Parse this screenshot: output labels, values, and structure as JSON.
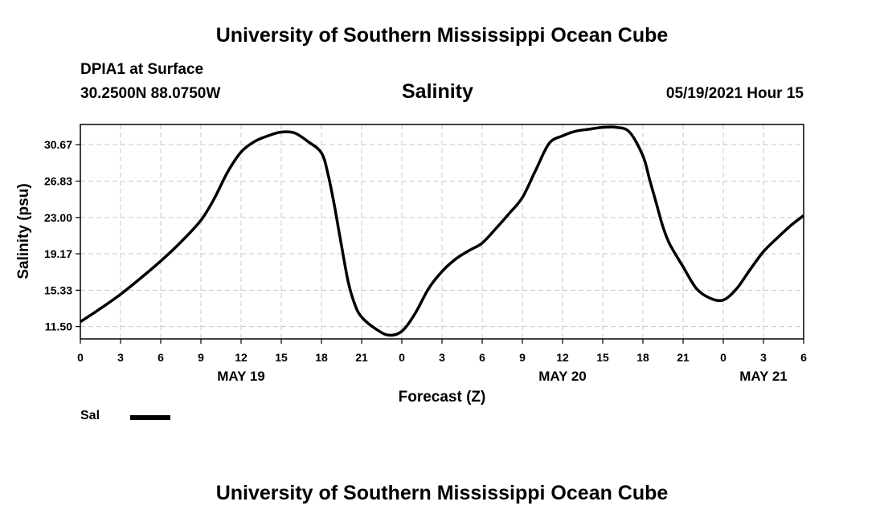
{
  "header": {
    "title": "University of Southern Mississippi Ocean Cube",
    "station": "DPIA1 at Surface",
    "coords": "30.2500N  88.0750W",
    "timestamp": "05/19/2021 Hour 15"
  },
  "footer": {
    "title": "University of Southern Mississippi Ocean Cube"
  },
  "chart_data": {
    "type": "line",
    "title": "Salinity",
    "xlabel": "Forecast (Z)",
    "ylabel": "Salinity (psu)",
    "xlim": [
      0,
      54
    ],
    "ylim": [
      10.2,
      32.8
    ],
    "grid": true,
    "x_ticks": [
      0,
      3,
      6,
      9,
      12,
      15,
      18,
      21,
      24,
      27,
      30,
      33,
      36,
      39,
      42,
      45,
      48,
      51,
      54
    ],
    "x_tick_labels": [
      "0",
      "3",
      "6",
      "9",
      "12",
      "15",
      "18",
      "21",
      "0",
      "3",
      "6",
      "9",
      "12",
      "15",
      "18",
      "21",
      "0",
      "3",
      "6"
    ],
    "y_ticks": [
      11.5,
      15.33,
      19.17,
      23.0,
      26.83,
      30.67
    ],
    "y_tick_labels": [
      "11.50",
      "15.33",
      "19.17",
      "23.00",
      "26.83",
      "30.67"
    ],
    "date_labels": [
      {
        "x": 12,
        "label": "MAY 19"
      },
      {
        "x": 36,
        "label": "MAY 20"
      },
      {
        "x": 51,
        "label": "MAY 21"
      }
    ],
    "series": [
      {
        "name": "Sal",
        "color": "#000000",
        "x": [
          0,
          1.5,
          3,
          4.5,
          6,
          7.5,
          9,
          10,
          11,
          12,
          13,
          14,
          15,
          16,
          17,
          18,
          18.5,
          19,
          19.5,
          20,
          20.5,
          21,
          22,
          23,
          24,
          25,
          26,
          27,
          28,
          29,
          30,
          31,
          32,
          33,
          34,
          35,
          36,
          37,
          38,
          39,
          40,
          41,
          42,
          42.5,
          43,
          43.5,
          44,
          45,
          46,
          47,
          48,
          49,
          50,
          51,
          52,
          53,
          54
        ],
        "y": [
          12.0,
          13.4,
          14.9,
          16.6,
          18.4,
          20.4,
          22.7,
          25.0,
          27.8,
          29.9,
          31.0,
          31.6,
          32.0,
          31.9,
          31.0,
          29.8,
          27.5,
          24.0,
          20.0,
          16.2,
          13.8,
          12.5,
          11.3,
          10.6,
          11.0,
          12.9,
          15.5,
          17.3,
          18.6,
          19.5,
          20.3,
          21.8,
          23.4,
          25.1,
          28.0,
          30.8,
          31.6,
          32.1,
          32.3,
          32.5,
          32.5,
          32.0,
          29.5,
          27.0,
          24.5,
          22.0,
          20.2,
          17.8,
          15.5,
          14.5,
          14.3,
          15.5,
          17.5,
          19.4,
          20.8,
          22.1,
          23.2
        ]
      }
    ],
    "legend": {
      "position": "bottom-left",
      "label": "Sal"
    }
  }
}
